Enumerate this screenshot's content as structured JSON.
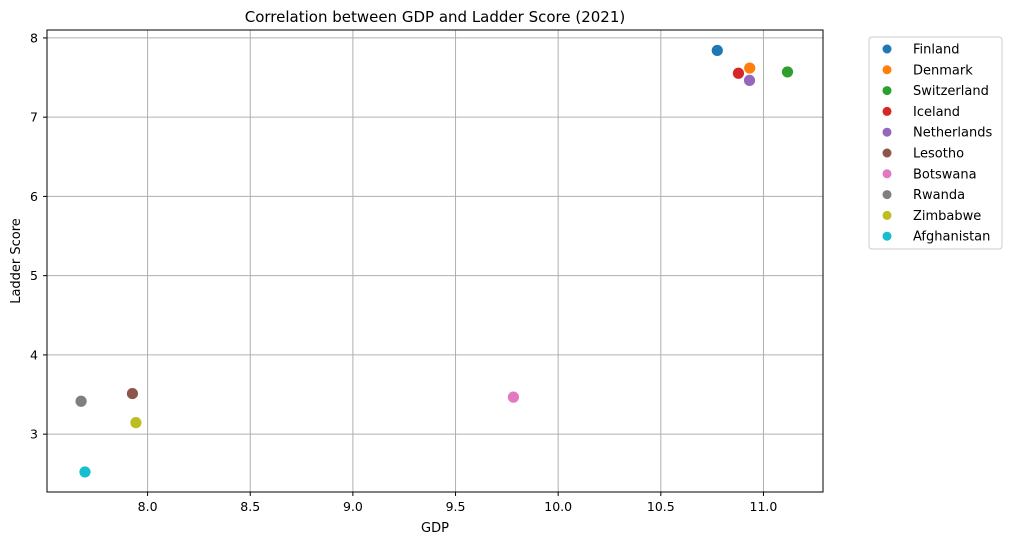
{
  "chart_data": {
    "type": "scatter",
    "title": "Correlation between GDP and Ladder Score (2021)",
    "xlabel": "GDP",
    "ylabel": "Ladder Score",
    "xlim": [
      7.51,
      11.29
    ],
    "ylim": [
      2.27,
      8.1
    ],
    "xticks": [
      8.0,
      8.5,
      9.0,
      9.5,
      10.0,
      10.5,
      11.0
    ],
    "xtick_labels": [
      "8.0",
      "8.5",
      "9.0",
      "9.5",
      "10.0",
      "10.5",
      "11.0"
    ],
    "yticks": [
      3,
      4,
      5,
      6,
      7,
      8
    ],
    "ytick_labels": [
      "3",
      "4",
      "5",
      "6",
      "7",
      "8"
    ],
    "grid": true,
    "legend_position": "outside-top-right",
    "series": [
      {
        "name": "Finland",
        "color": "#1f77b4",
        "x": 10.775,
        "y": 7.842
      },
      {
        "name": "Denmark",
        "color": "#ff7f0e",
        "x": 10.933,
        "y": 7.62
      },
      {
        "name": "Switzerland",
        "color": "#2ca02c",
        "x": 11.117,
        "y": 7.571
      },
      {
        "name": "Iceland",
        "color": "#d62728",
        "x": 10.878,
        "y": 7.554
      },
      {
        "name": "Netherlands",
        "color": "#9467bd",
        "x": 10.932,
        "y": 7.464
      },
      {
        "name": "Lesotho",
        "color": "#8c564b",
        "x": 7.926,
        "y": 3.512
      },
      {
        "name": "Botswana",
        "color": "#e377c2",
        "x": 9.782,
        "y": 3.467
      },
      {
        "name": "Rwanda",
        "color": "#7f7f7f",
        "x": 7.676,
        "y": 3.415
      },
      {
        "name": "Zimbabwe",
        "color": "#bcbd22",
        "x": 7.943,
        "y": 3.145
      },
      {
        "name": "Afghanistan",
        "color": "#17becf",
        "x": 7.695,
        "y": 2.523
      }
    ]
  }
}
